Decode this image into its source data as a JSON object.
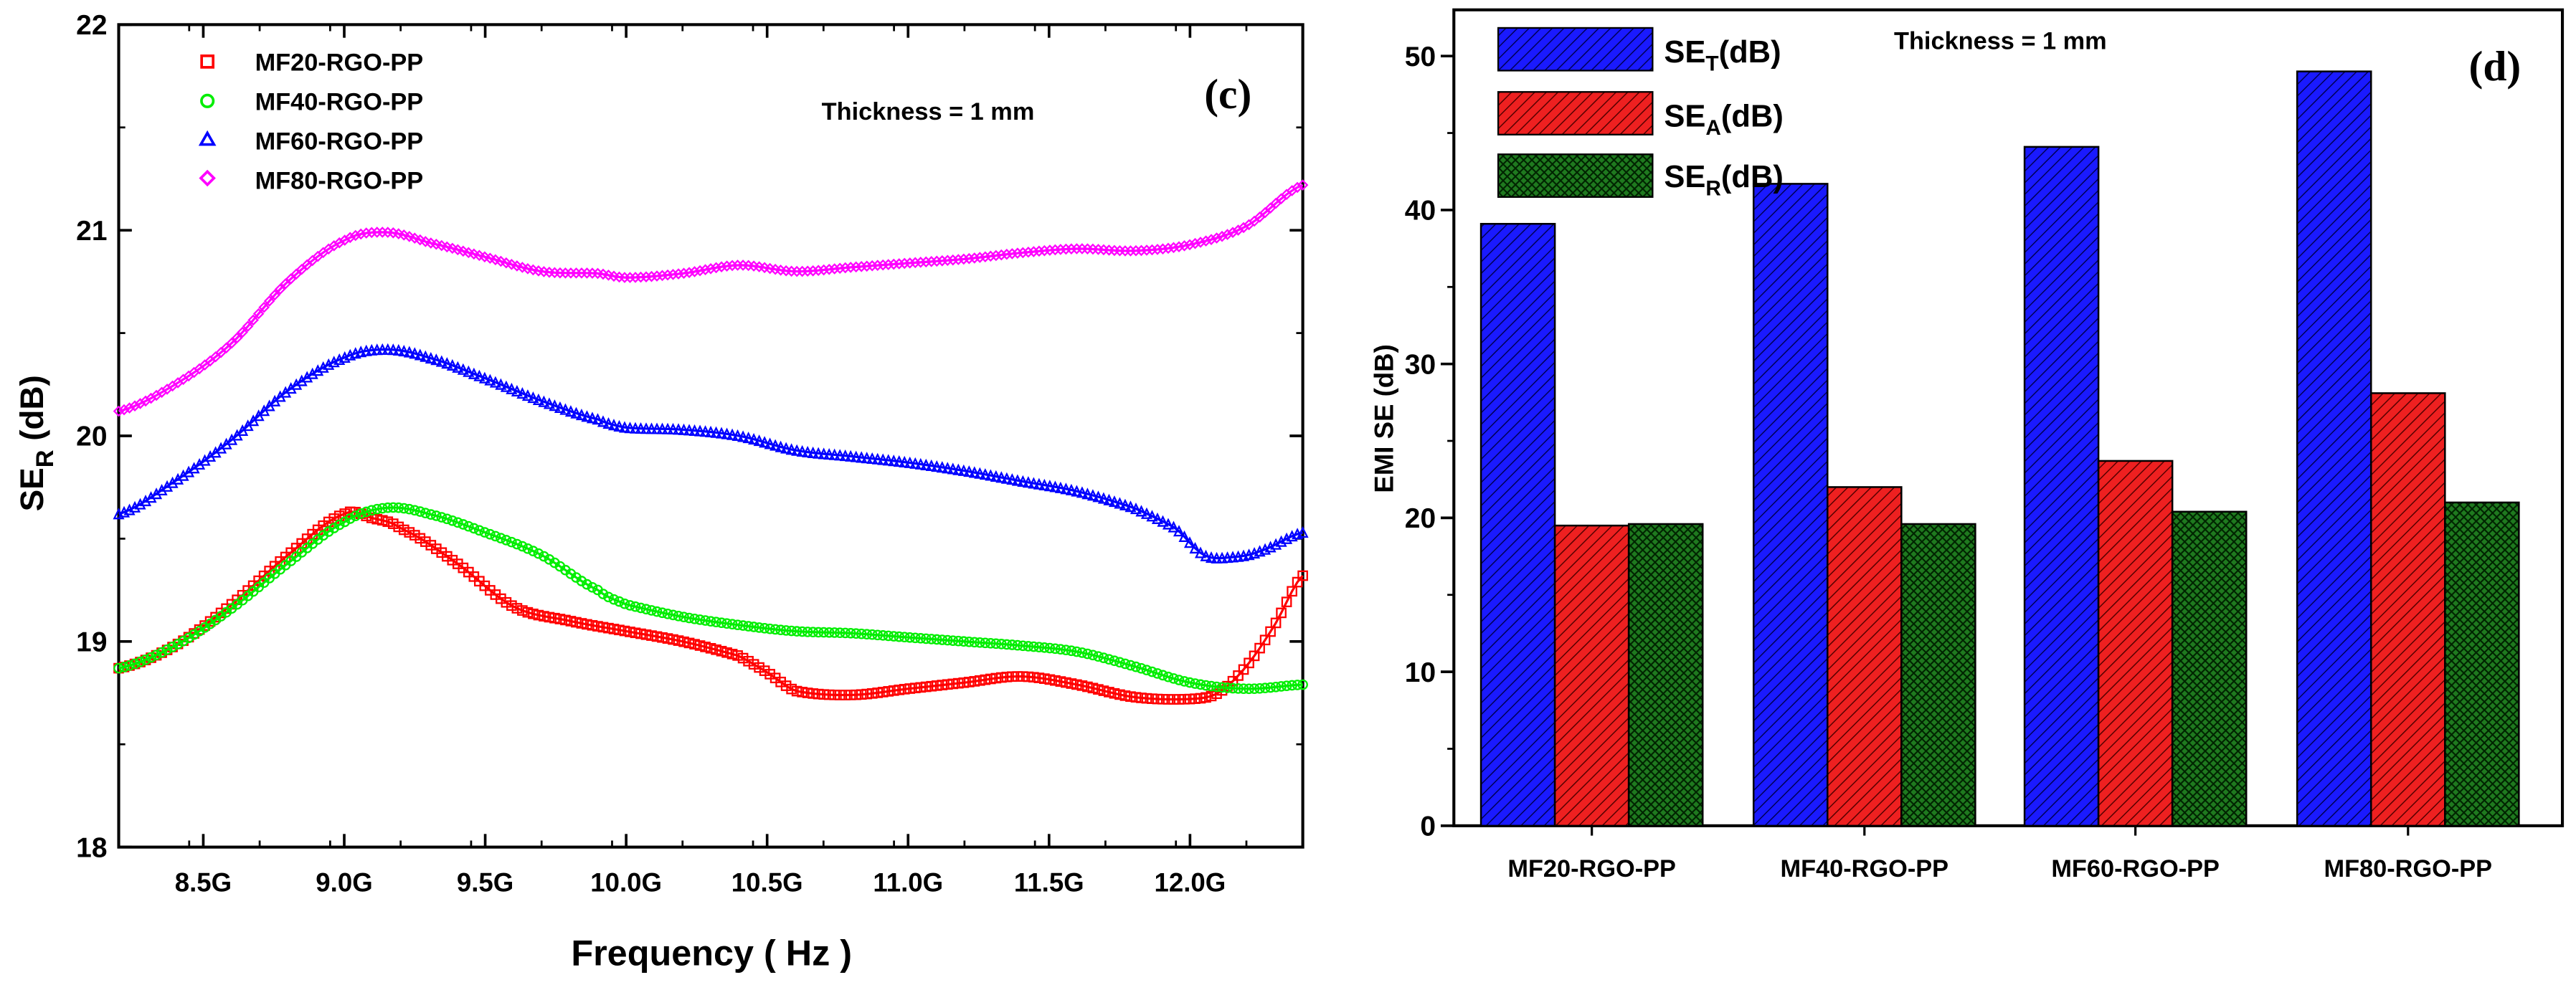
{
  "chart_data": [
    {
      "type": "line",
      "panel_label": "(c)",
      "title": "",
      "xlabel": "Frequency ( Hz )",
      "ylabel_main": "SE",
      "ylabel_sub": "R",
      "ylabel_unit": " (dB)",
      "annotation": "Thickness = 1 mm",
      "xlim": [
        8.2,
        12.4
      ],
      "ylim": [
        18,
        22
      ],
      "xticks": [
        {
          "value": 8.5,
          "label": "8.5G"
        },
        {
          "value": 9.0,
          "label": "9.0G"
        },
        {
          "value": 9.5,
          "label": "9.5G"
        },
        {
          "value": 10.0,
          "label": "10.0G"
        },
        {
          "value": 10.5,
          "label": "10.5G"
        },
        {
          "value": 11.0,
          "label": "11.0G"
        },
        {
          "value": 11.5,
          "label": "11.5G"
        },
        {
          "value": 12.0,
          "label": "12.0G"
        }
      ],
      "yticks": [
        {
          "value": 18,
          "label": "18"
        },
        {
          "value": 19,
          "label": "19"
        },
        {
          "value": 20,
          "label": "20"
        },
        {
          "value": 21,
          "label": "21"
        },
        {
          "value": 22,
          "label": "22"
        }
      ],
      "legend_position": "top-left",
      "series": [
        {
          "name": "MF20-RGO-PP",
          "color": "#ff0000",
          "marker": "square",
          "x": [
            8.2,
            8.4,
            8.6,
            8.8,
            9.0,
            9.1,
            9.2,
            9.4,
            9.6,
            9.8,
            10.0,
            10.2,
            10.4,
            10.5,
            10.6,
            10.8,
            11.0,
            11.2,
            11.4,
            11.6,
            11.8,
            12.0,
            12.1,
            12.2,
            12.3,
            12.4
          ],
          "y": [
            18.87,
            18.98,
            19.18,
            19.42,
            19.62,
            19.6,
            19.55,
            19.38,
            19.17,
            19.1,
            19.05,
            19.0,
            18.93,
            18.85,
            18.76,
            18.74,
            18.77,
            18.8,
            18.83,
            18.79,
            18.73,
            18.72,
            18.75,
            18.88,
            19.08,
            19.32
          ]
        },
        {
          "name": "MF40-RGO-PP",
          "color": "#00ee00",
          "marker": "circle",
          "x": [
            8.2,
            8.4,
            8.6,
            8.8,
            9.0,
            9.15,
            9.3,
            9.5,
            9.7,
            9.9,
            10.0,
            10.2,
            10.4,
            10.6,
            10.8,
            11.0,
            11.2,
            11.4,
            11.6,
            11.8,
            12.0,
            12.2,
            12.4
          ],
          "y": [
            18.87,
            18.98,
            19.16,
            19.38,
            19.58,
            19.65,
            19.62,
            19.53,
            19.42,
            19.25,
            19.18,
            19.12,
            19.08,
            19.05,
            19.04,
            19.02,
            19.0,
            18.98,
            18.95,
            18.88,
            18.8,
            18.77,
            18.79
          ]
        },
        {
          "name": "MF60-RGO-PP",
          "color": "#0000ff",
          "marker": "triangle",
          "x": [
            8.2,
            8.4,
            8.6,
            8.8,
            9.0,
            9.15,
            9.3,
            9.5,
            9.7,
            9.9,
            10.0,
            10.2,
            10.4,
            10.6,
            10.8,
            11.0,
            11.2,
            11.4,
            11.6,
            11.8,
            11.95,
            12.05,
            12.15,
            12.25,
            12.4
          ],
          "y": [
            19.62,
            19.78,
            19.98,
            20.22,
            20.38,
            20.42,
            20.38,
            20.28,
            20.17,
            20.08,
            20.04,
            20.03,
            20.0,
            19.93,
            19.9,
            19.87,
            19.83,
            19.78,
            19.73,
            19.65,
            19.55,
            19.42,
            19.41,
            19.44,
            19.53
          ]
        },
        {
          "name": "MF80-RGO-PP",
          "color": "#ff00ff",
          "marker": "diamond",
          "x": [
            8.2,
            8.4,
            8.6,
            8.8,
            9.0,
            9.15,
            9.3,
            9.5,
            9.7,
            9.9,
            10.0,
            10.2,
            10.4,
            10.6,
            10.8,
            11.0,
            11.2,
            11.4,
            11.6,
            11.8,
            12.0,
            12.2,
            12.4
          ],
          "y": [
            20.12,
            20.25,
            20.45,
            20.75,
            20.95,
            20.99,
            20.94,
            20.87,
            20.8,
            20.79,
            20.77,
            20.79,
            20.83,
            20.8,
            20.82,
            20.84,
            20.86,
            20.89,
            20.91,
            20.9,
            20.93,
            21.02,
            21.22
          ]
        }
      ]
    },
    {
      "type": "bar",
      "panel_label": "(d)",
      "title": "",
      "xlabel": "",
      "ylabel": "EMI SE (dB)",
      "annotation": "Thickness = 1 mm",
      "ylim": [
        0,
        53
      ],
      "yticks": [
        {
          "value": 0,
          "label": "0"
        },
        {
          "value": 10,
          "label": "10"
        },
        {
          "value": 20,
          "label": "20"
        },
        {
          "value": 30,
          "label": "30"
        },
        {
          "value": 40,
          "label": "40"
        },
        {
          "value": 50,
          "label": "50"
        }
      ],
      "categories": [
        "MF20-RGO-PP",
        "MF40-RGO-PP",
        "MF60-RGO-PP",
        "MF80-RGO-PP"
      ],
      "legend_position": "top-left",
      "series": [
        {
          "name_main": "SE",
          "name_sub": "T",
          "name_unit": "(dB)",
          "color": "#1a1aff",
          "hatch": "diagonal",
          "values": [
            39.1,
            41.7,
            44.1,
            49.0
          ]
        },
        {
          "name_main": "SE",
          "name_sub": "A",
          "name_unit": "(dB)",
          "color": "#ee2020",
          "hatch": "diagonal",
          "values": [
            19.5,
            22.0,
            23.7,
            28.1
          ]
        },
        {
          "name_main": "SE",
          "name_sub": "R",
          "name_unit": "(dB)",
          "color": "#1f7a1f",
          "hatch": "crosshatch",
          "values": [
            19.6,
            19.6,
            20.4,
            21.0
          ]
        }
      ]
    }
  ]
}
